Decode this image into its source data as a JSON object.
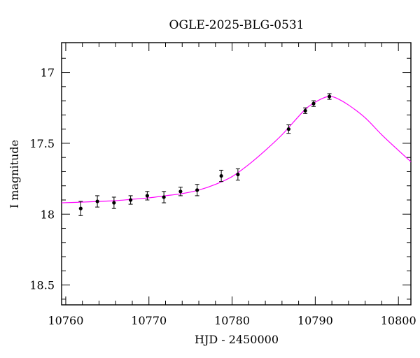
{
  "chart_data": {
    "type": "scatter",
    "title": "OGLE-2025-BLG-0531",
    "xlabel": "HJD - 2450000",
    "ylabel": "I magnitude",
    "xlim": [
      10759.5,
      10801.5
    ],
    "ylim": [
      18.64,
      16.79
    ],
    "y_inverted": true,
    "grid": false,
    "x_ticks": [
      {
        "value": 10760,
        "label": "10760"
      },
      {
        "value": 10770,
        "label": "10770"
      },
      {
        "value": 10780,
        "label": "10780"
      },
      {
        "value": 10790,
        "label": "10790"
      },
      {
        "value": 10800,
        "label": "10800"
      }
    ],
    "y_ticks": [
      {
        "value": 17.0,
        "label": "17"
      },
      {
        "value": 17.5,
        "label": "17.5"
      },
      {
        "value": 18.0,
        "label": "18"
      },
      {
        "value": 18.5,
        "label": "18.5"
      }
    ],
    "points": [
      {
        "x": 10761.8,
        "y": 17.96,
        "err": 0.05
      },
      {
        "x": 10763.8,
        "y": 17.91,
        "err": 0.04
      },
      {
        "x": 10765.8,
        "y": 17.92,
        "err": 0.04
      },
      {
        "x": 10767.8,
        "y": 17.9,
        "err": 0.03
      },
      {
        "x": 10769.8,
        "y": 17.87,
        "err": 0.03
      },
      {
        "x": 10771.8,
        "y": 17.88,
        "err": 0.04
      },
      {
        "x": 10773.8,
        "y": 17.84,
        "err": 0.03
      },
      {
        "x": 10775.8,
        "y": 17.83,
        "err": 0.04
      },
      {
        "x": 10778.7,
        "y": 17.73,
        "err": 0.04
      },
      {
        "x": 10780.7,
        "y": 17.72,
        "err": 0.04
      },
      {
        "x": 10786.8,
        "y": 17.4,
        "err": 0.03
      },
      {
        "x": 10788.8,
        "y": 17.27,
        "err": 0.02
      },
      {
        "x": 10789.8,
        "y": 17.22,
        "err": 0.02
      },
      {
        "x": 10791.7,
        "y": 17.17,
        "err": 0.02
      }
    ],
    "model": {
      "x": [
        10759.5,
        10762,
        10764,
        10766,
        10768,
        10770,
        10772,
        10774,
        10776,
        10778,
        10780,
        10782,
        10784,
        10786,
        10788,
        10789,
        10790,
        10791,
        10791.7,
        10792.5,
        10794,
        10796,
        10798,
        10800,
        10801.5
      ],
      "y": [
        17.92,
        17.915,
        17.91,
        17.905,
        17.895,
        17.885,
        17.87,
        17.855,
        17.83,
        17.79,
        17.735,
        17.65,
        17.55,
        17.44,
        17.31,
        17.25,
        17.21,
        17.18,
        17.17,
        17.18,
        17.23,
        17.32,
        17.44,
        17.55,
        17.63
      ]
    },
    "colors": {
      "points": "#000000",
      "model": "#ff00ff",
      "frame": "#000000"
    }
  }
}
